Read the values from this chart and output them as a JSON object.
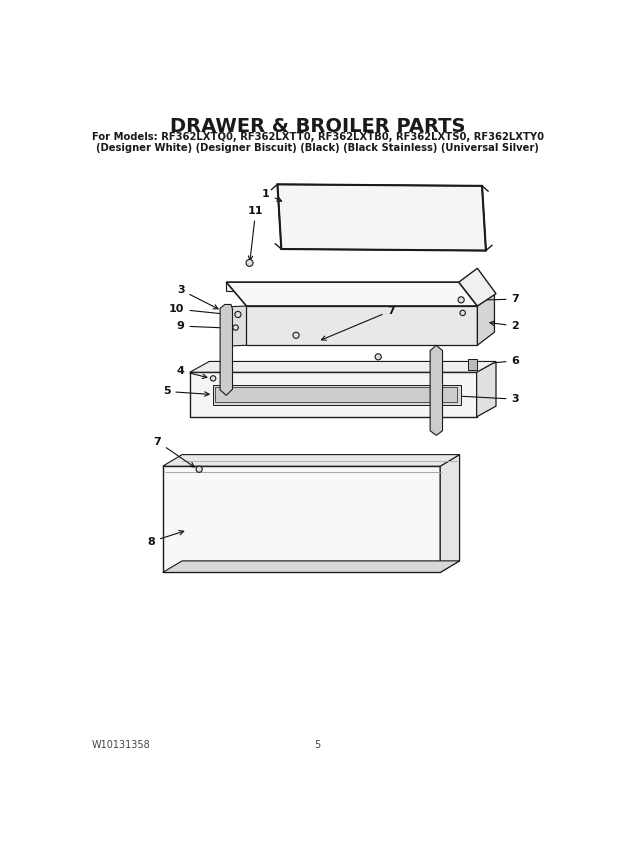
{
  "title": "DRAWER & BROILER PARTS",
  "subtitle1": "For Models: RF362LXTQ0, RF362LXTT0, RF362LXTB0, RF362LXTS0, RF362LXTY0",
  "subtitle2": "(Designer White) (Designer Biscuit) (Black) (Black Stainless) (Universal Silver)",
  "doc_number": "W10131358",
  "page_number": "5",
  "bg_color": "#ffffff",
  "line_color": "#1a1a1a",
  "title_fontsize": 14,
  "subtitle_fontsize": 7.2,
  "footer_fontsize": 7,
  "label_fontsize": 8
}
